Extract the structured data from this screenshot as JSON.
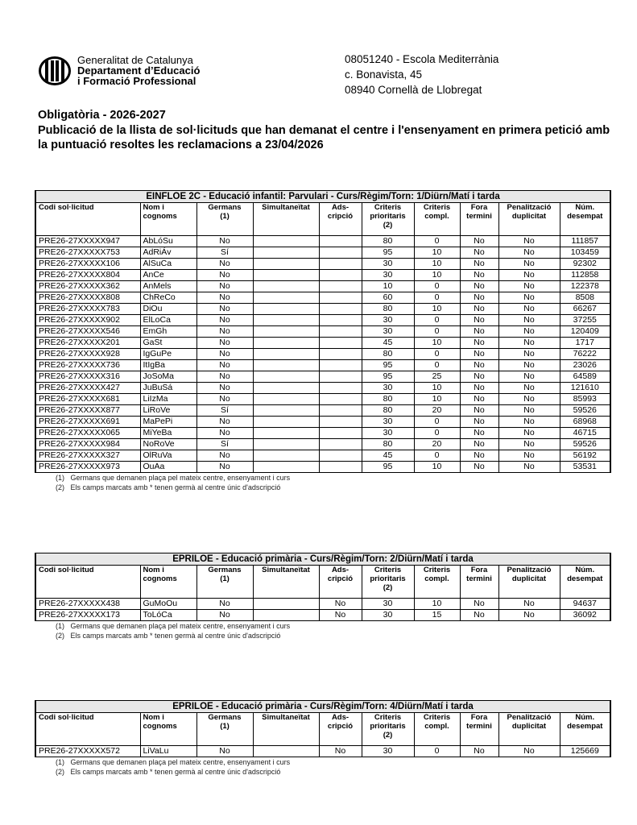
{
  "header": {
    "logo": {
      "line1": "Generalitat de Catalunya",
      "line2": "Departament d’Educació",
      "line3": "i Formació Professional"
    },
    "address": [
      "08051240 - Escola Mediterrània",
      "c. Bonavista, 45",
      "08940 Cornellà de Llobregat"
    ]
  },
  "title": {
    "line1": "Obligatòria - 2026-2027",
    "line2": "Publicació de la llista de sol·licituds que han demanat el centre i l'ensenyament en primera petició amb la puntuació resoltes les reclamacions a 23/04/2026"
  },
  "columns": [
    {
      "label": "Codi sol·licitud",
      "align": "left"
    },
    {
      "label": "Nom i\ncognoms",
      "align": "left"
    },
    {
      "label": "Germans\n(1)"
    },
    {
      "label": "Simultaneïtat"
    },
    {
      "label": "Ads-\ncripció"
    },
    {
      "label": "Criteris\nprioritaris\n(2)"
    },
    {
      "label": "Criteris\ncompl."
    },
    {
      "label": "Fora\ntermini"
    },
    {
      "label": "Penalització\nduplicitat"
    },
    {
      "label": "Núm.\ndesempat"
    }
  ],
  "notes": [
    "(1)   Germans que demanen plaça pel mateix centre, ensenyament i curs",
    "(2)   Els camps marcats amb * tenen germà al centre únic d'adscripció"
  ],
  "tables": [
    {
      "caption": "EINFLOE 2C - Educació infantil: Parvulari    -  Curs/Règim/Torn:  1/Diürn/Matí i tarda",
      "rows": [
        [
          "PRE26-27XXXXX947",
          "AbLóSu",
          "No",
          "",
          "",
          "80",
          "0",
          "No",
          "No",
          "111857"
        ],
        [
          "PRE26-27XXXXX753",
          "AdRiÁv",
          "Sí",
          "",
          "",
          "95",
          "10",
          "No",
          "No",
          "103459"
        ],
        [
          "PRE26-27XXXXX106",
          "AlSuCa",
          "No",
          "",
          "",
          "30",
          "10",
          "No",
          "No",
          "92302"
        ],
        [
          "PRE26-27XXXXX804",
          "AnCe",
          "No",
          "",
          "",
          "30",
          "10",
          "No",
          "No",
          "112858"
        ],
        [
          "PRE26-27XXXXX362",
          "AnMels",
          "No",
          "",
          "",
          "10",
          "0",
          "No",
          "No",
          "122378"
        ],
        [
          "PRE26-27XXXXX808",
          "ChReCo",
          "No",
          "",
          "",
          "60",
          "0",
          "No",
          "No",
          "8508"
        ],
        [
          "PRE26-27XXXXX783",
          "DiOu",
          "No",
          "",
          "",
          "80",
          "10",
          "No",
          "No",
          "66267"
        ],
        [
          "PRE26-27XXXXX902",
          "ElLoCa",
          "No",
          "",
          "",
          "30",
          "0",
          "No",
          "No",
          "37255"
        ],
        [
          "PRE26-27XXXXX546",
          "EmGh",
          "No",
          "",
          "",
          "30",
          "0",
          "No",
          "No",
          "120409"
        ],
        [
          "PRE26-27XXXXX201",
          "GaSt",
          "No",
          "",
          "",
          "45",
          "10",
          "No",
          "No",
          "1717"
        ],
        [
          "PRE26-27XXXXX928",
          "IgGuPe",
          "No",
          "",
          "",
          "80",
          "0",
          "No",
          "No",
          "76222"
        ],
        [
          "PRE26-27XXXXX736",
          "ItIgBa",
          "No",
          "",
          "",
          "95",
          "0",
          "No",
          "No",
          "23026"
        ],
        [
          "PRE26-27XXXXX316",
          "JoSoMa",
          "No",
          "",
          "",
          "95",
          "25",
          "No",
          "No",
          "64589"
        ],
        [
          "PRE26-27XXXXX427",
          "JuBuSá",
          "No",
          "",
          "",
          "30",
          "10",
          "No",
          "No",
          "121610"
        ],
        [
          "PRE26-27XXXXX681",
          "LiIzMa",
          "No",
          "",
          "",
          "80",
          "10",
          "No",
          "No",
          "85993"
        ],
        [
          "PRE26-27XXXXX877",
          "LiRoVe",
          "Sí",
          "",
          "",
          "80",
          "20",
          "No",
          "No",
          "59526"
        ],
        [
          "PRE26-27XXXXX691",
          "MaPePi",
          "No",
          "",
          "",
          "30",
          "0",
          "No",
          "No",
          "68968"
        ],
        [
          "PRE26-27XXXXX065",
          "MiYeBa",
          "No",
          "",
          "",
          "30",
          "0",
          "No",
          "No",
          "46715"
        ],
        [
          "PRE26-27XXXXX984",
          "NoRoVe",
          "Sí",
          "",
          "",
          "80",
          "20",
          "No",
          "No",
          "59526"
        ],
        [
          "PRE26-27XXXXX327",
          "OlRuVa",
          "No",
          "",
          "",
          "45",
          "0",
          "No",
          "No",
          "56192"
        ],
        [
          "PRE26-27XXXXX973",
          "OuAa",
          "No",
          "",
          "",
          "95",
          "10",
          "No",
          "No",
          "53531"
        ]
      ]
    },
    {
      "caption": "EPRILOE - Educació primària    -  Curs/Règim/Torn:  2/Diürn/Matí i tarda",
      "rows": [
        [
          "PRE26-27XXXXX438",
          "GuMoOu",
          "No",
          "",
          "No",
          "30",
          "10",
          "No",
          "No",
          "94637"
        ],
        [
          "PRE26-27XXXXX173",
          "ToLóCa",
          "No",
          "",
          "No",
          "30",
          "15",
          "No",
          "No",
          "36092"
        ]
      ]
    },
    {
      "caption": "EPRILOE - Educació primària    -  Curs/Règim/Torn:  4/Diürn/Matí i tarda",
      "rows": [
        [
          "PRE26-27XXXXX572",
          "LiVaLu",
          "No",
          "",
          "No",
          "30",
          "0",
          "No",
          "No",
          "125669"
        ]
      ]
    }
  ]
}
